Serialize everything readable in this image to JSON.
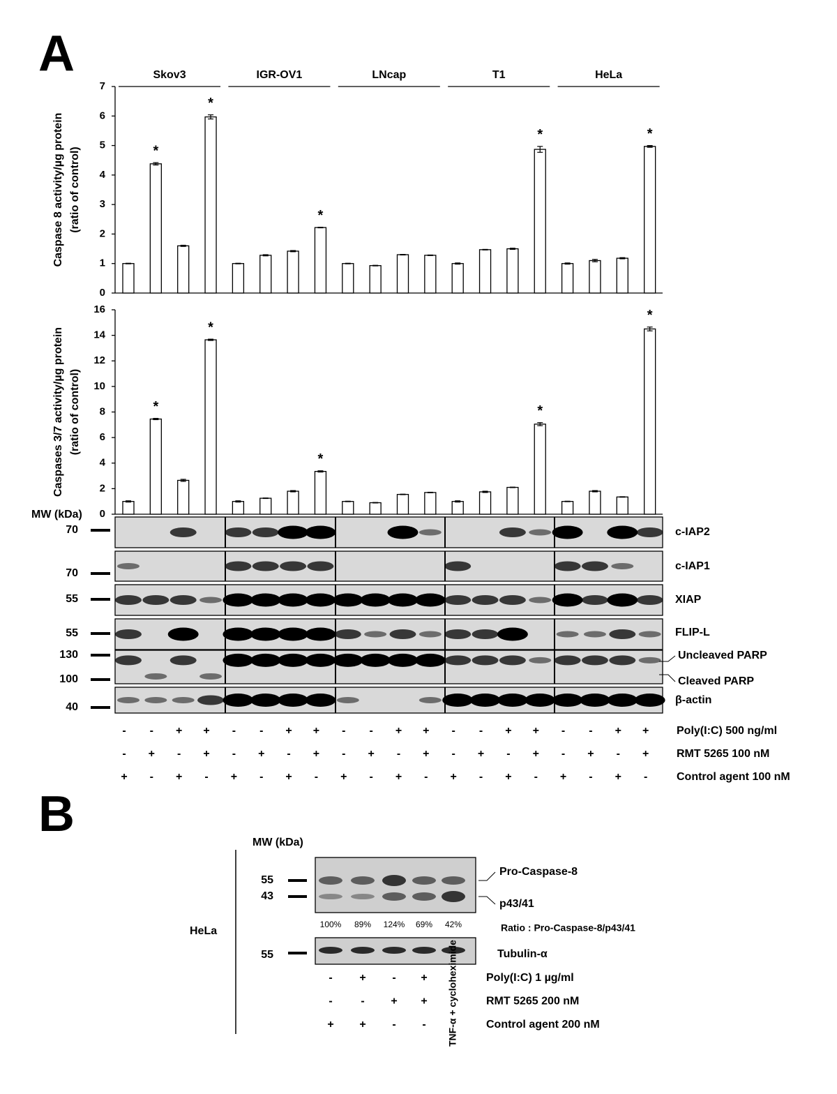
{
  "panel_labels": [
    "A",
    "B"
  ],
  "chart_data": [
    {
      "type": "bar",
      "groups": [
        "Skov3",
        "IGR-OV1",
        "LNcap",
        "T1",
        "HeLa"
      ],
      "ylabel": [
        "Caspase 8 activity/µg protein",
        "(ratio of  control)"
      ],
      "categories": [
        null,
        null,
        null,
        null,
        null,
        null,
        null,
        null,
        null,
        null,
        null,
        null,
        null,
        null,
        null,
        null,
        null,
        null,
        null,
        null
      ],
      "values": [
        1.0,
        4.38,
        1.6,
        5.97,
        1.0,
        1.28,
        1.42,
        2.22,
        1.0,
        0.93,
        1.3,
        1.28,
        1.0,
        1.47,
        1.5,
        4.87,
        1.0,
        1.1,
        1.18,
        4.97
      ],
      "errors": [
        0.01,
        0.04,
        0.02,
        0.07,
        0.01,
        0.02,
        0.02,
        0.01,
        0.01,
        0.01,
        0.01,
        0.01,
        0.02,
        0.01,
        0.02,
        0.1,
        0.02,
        0.04,
        0.02,
        0.03
      ],
      "significance": [
        null,
        "*",
        null,
        "*",
        null,
        null,
        null,
        "*",
        null,
        null,
        null,
        null,
        null,
        null,
        null,
        "*",
        null,
        null,
        null,
        "*"
      ],
      "color": "#ffffff",
      "ylim": [
        0,
        7
      ],
      "yticks": [
        0,
        1,
        2,
        3,
        4,
        5,
        6,
        7
      ]
    },
    {
      "type": "bar",
      "ylabel": [
        "Caspases 3/7 activity/µg protein",
        "(ratio of  control)"
      ],
      "categories": [
        null,
        null,
        null,
        null,
        null,
        null,
        null,
        null,
        null,
        null,
        null,
        null,
        null,
        null,
        null,
        null,
        null,
        null,
        null,
        null
      ],
      "values": [
        1.0,
        7.45,
        2.65,
        13.65,
        1.0,
        1.25,
        1.8,
        3.35,
        1.0,
        0.9,
        1.55,
        1.7,
        1.0,
        1.75,
        2.1,
        7.05,
        1.0,
        1.8,
        1.35,
        14.5
      ],
      "errors": [
        0.05,
        0.05,
        0.08,
        0.05,
        0.05,
        0.02,
        0.05,
        0.05,
        0.02,
        0.02,
        0.02,
        0.02,
        0.05,
        0.05,
        0.02,
        0.12,
        0.02,
        0.05,
        0.02,
        0.15
      ],
      "significance": [
        null,
        "*",
        null,
        "*",
        null,
        null,
        null,
        "*",
        null,
        null,
        null,
        null,
        null,
        null,
        null,
        "*",
        null,
        null,
        null,
        "*"
      ],
      "color": "#ffffff",
      "ylim": [
        0,
        16
      ],
      "yticks": [
        0,
        2,
        4,
        6,
        8,
        10,
        12,
        14,
        16
      ]
    }
  ],
  "blots": {
    "mw_title": "MW (kDa)",
    "rows": [
      {
        "labels": [
          "c-IAP2"
        ],
        "mw": [
          "70"
        ]
      },
      {
        "labels": [
          "c-IAP1"
        ],
        "mw": [
          "70"
        ]
      },
      {
        "labels": [
          "XIAP"
        ],
        "mw": [
          "55"
        ]
      },
      {
        "labels": [
          "FLIP-L"
        ],
        "mw": [
          "55"
        ]
      },
      {
        "labels": [
          "Uncleaved PARP",
          "Cleaved PARP"
        ],
        "mw": [
          "130",
          "100"
        ]
      },
      {
        "labels": [
          "β-actin"
        ],
        "mw": [
          "40"
        ]
      }
    ]
  },
  "treatments": [
    {
      "label": "Poly(I:C) 500 ng/ml",
      "signs": [
        "-",
        "-",
        "+",
        "+",
        "-",
        "-",
        "+",
        "+",
        "-",
        "-",
        "+",
        "+",
        "-",
        "-",
        "+",
        "+",
        "-",
        "-",
        "+",
        "+"
      ]
    },
    {
      "label": "RMT 5265 100 nM",
      "signs": [
        "-",
        "+",
        "-",
        "+",
        "-",
        "+",
        "-",
        "+",
        "-",
        "+",
        "-",
        "+",
        "-",
        "+",
        "-",
        "+",
        "-",
        "+",
        "-",
        "+"
      ]
    },
    {
      "label": "Control agent 100 nM",
      "signs": [
        "+",
        "-",
        "+",
        "-",
        "+",
        "-",
        "+",
        "-",
        "+",
        "-",
        "+",
        "-",
        "+",
        "-",
        "+",
        "-",
        "+",
        "-",
        "+",
        "-"
      ]
    }
  ],
  "panel_b": {
    "mw_title": "MW (kDa)",
    "cell_line": "HeLa",
    "blot1": {
      "mw": [
        "55",
        "43"
      ],
      "labels": [
        "Pro-Caspase-8",
        "p43/41"
      ]
    },
    "ratios": [
      "100%",
      "89%",
      "124%",
      "69%",
      "42%"
    ],
    "ratio_title": "Ratio : Pro-Caspase-8/p43/41",
    "blot2": {
      "mw": [
        "55"
      ],
      "labels": [
        "Tubulin-α"
      ]
    },
    "treatments": [
      {
        "label": "Poly(I:C) 1 µg/ml",
        "signs": [
          "-",
          "+",
          "-",
          "+"
        ]
      },
      {
        "label": "RMT 5265 200 nM",
        "signs": [
          "-",
          "-",
          "+",
          "+"
        ]
      },
      {
        "label": "Control agent 200 nM",
        "signs": [
          "+",
          "+",
          "-",
          "-"
        ]
      }
    ],
    "positive_control": "TNF-α + cycloheximide"
  }
}
